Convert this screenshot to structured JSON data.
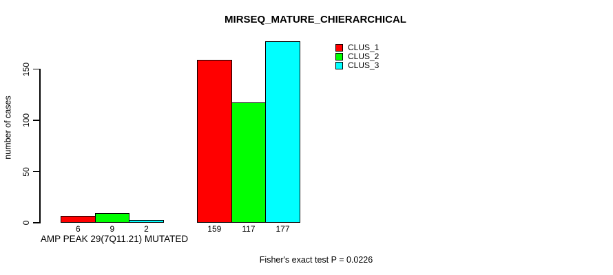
{
  "title": "MIRSEQ_MATURE_CHIERARCHICAL",
  "y_axis": {
    "label": "number of cases",
    "ticks": [
      "0",
      "50",
      "100",
      "150"
    ]
  },
  "x_axis": {
    "label": "AMP PEAK 29(7Q11.21) MUTATED"
  },
  "legend": {
    "items": [
      {
        "label": "CLUS_1",
        "color": "#FF0000"
      },
      {
        "label": "CLUS_2",
        "color": "#00FF00"
      },
      {
        "label": "CLUS_3",
        "color": "#00FFFF"
      }
    ]
  },
  "footer": {
    "stat_text": "Fisher's exact test P = 0.0226"
  },
  "chart_data": {
    "type": "bar",
    "title": "MIRSEQ_MATURE_CHIERARCHICAL",
    "ylabel": "number of cases",
    "xlabel": "AMP PEAK 29(7Q11.21) MUTATED",
    "ylim": [
      0,
      178
    ],
    "yticks": [
      0,
      50,
      100,
      150
    ],
    "grid": false,
    "legend_position": "top-right",
    "groups": [
      "AMP PEAK 29(7Q11.21) MUTATED",
      ""
    ],
    "series": [
      {
        "name": "CLUS_1",
        "color": "#FF0000",
        "values": [
          6,
          159
        ]
      },
      {
        "name": "CLUS_2",
        "color": "#00FF00",
        "values": [
          9,
          117
        ]
      },
      {
        "name": "CLUS_3",
        "color": "#00FFFF",
        "values": [
          2,
          177
        ]
      }
    ],
    "bar_value_labels": [
      [
        "6",
        "9",
        "2"
      ],
      [
        "159",
        "117",
        "177"
      ]
    ],
    "annotation": "Fisher's exact test P = 0.0226"
  }
}
